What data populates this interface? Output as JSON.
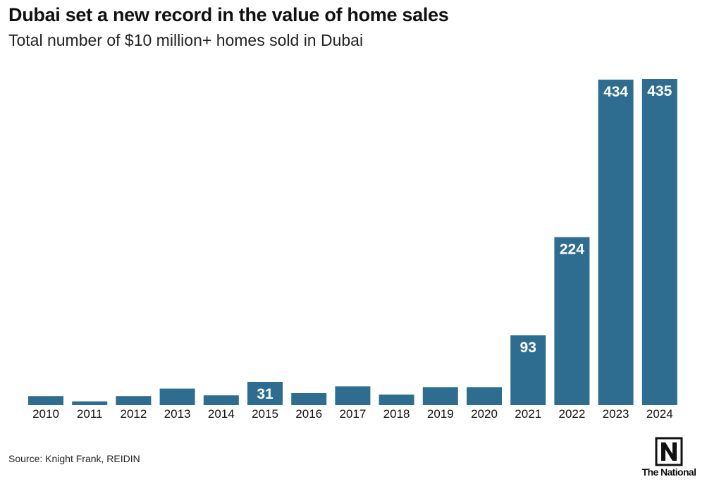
{
  "header": {
    "title": "Dubai set a new record in the value of home sales",
    "subtitle": "Total number of $10 million+ homes sold in Dubai"
  },
  "footer": {
    "source": "Source: Knight Frank, REIDIN",
    "logo_text": "The National"
  },
  "colors": {
    "bar": "#2e6d8f",
    "label_on_bar": "#ffffff",
    "text": "#111111"
  },
  "chart_data": {
    "type": "bar",
    "categories": [
      "2010",
      "2011",
      "2012",
      "2013",
      "2014",
      "2015",
      "2016",
      "2017",
      "2018",
      "2019",
      "2020",
      "2021",
      "2022",
      "2023",
      "2024"
    ],
    "values": [
      12,
      5,
      12,
      22,
      13,
      31,
      16,
      25,
      14,
      24,
      24,
      93,
      224,
      434,
      435
    ],
    "data_labels": [
      "",
      "",
      "",
      "",
      "",
      "31",
      "",
      "",
      "",
      "",
      "",
      "93",
      "224",
      "434",
      "435"
    ],
    "ylim": [
      0,
      435
    ],
    "grid": false,
    "legend": "none"
  }
}
